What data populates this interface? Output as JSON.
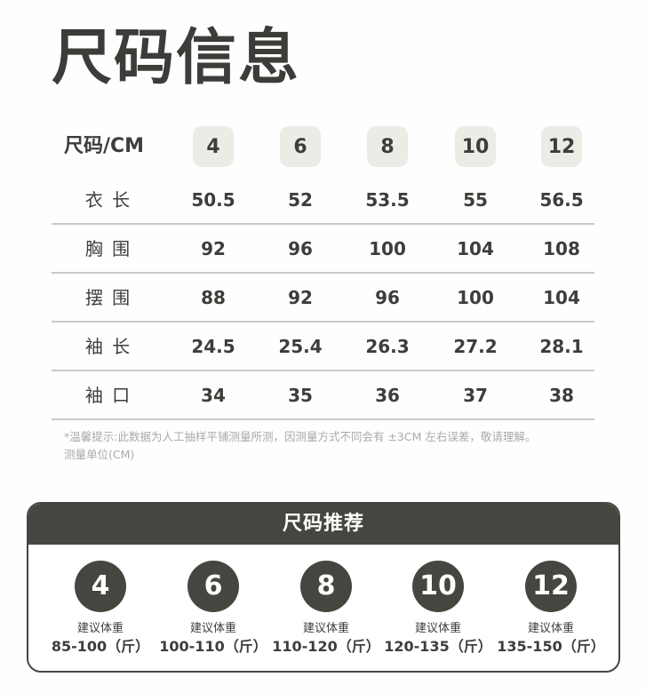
{
  "title": "尺码信息",
  "table": {
    "header_label": "尺码/CM",
    "sizes": [
      "4",
      "6",
      "8",
      "10",
      "12"
    ],
    "rows": [
      {
        "label": "衣 长",
        "values": [
          "50.5",
          "52",
          "53.5",
          "55",
          "56.5"
        ]
      },
      {
        "label": "胸 围",
        "values": [
          "92",
          "96",
          "100",
          "104",
          "108"
        ]
      },
      {
        "label": "摆 围",
        "values": [
          "88",
          "92",
          "96",
          "100",
          "104"
        ]
      },
      {
        "label": "袖 长",
        "values": [
          "24.5",
          "25.4",
          "26.3",
          "27.2",
          "28.1"
        ]
      },
      {
        "label": "袖 口",
        "values": [
          "34",
          "35",
          "36",
          "37",
          "38"
        ]
      }
    ]
  },
  "note": {
    "line1": "*温馨提示:此数据为人工抽样平铺测量所测，因测量方式不同会有 ±3CM 左右误差，敬请理解。",
    "line2": "测量单位(CM)"
  },
  "recommend": {
    "title": "尺码推荐",
    "items": [
      {
        "size": "4",
        "label": "建议体重",
        "range": "85-100（斤）"
      },
      {
        "size": "6",
        "label": "建议体重",
        "range": "100-110（斤）"
      },
      {
        "size": "8",
        "label": "建议体重",
        "range": "110-120（斤）"
      },
      {
        "size": "10",
        "label": "建议体重",
        "range": "120-135（斤）"
      },
      {
        "size": "12",
        "label": "建议体重",
        "range": "135-150（斤）"
      }
    ]
  },
  "colors": {
    "dark": "#45463f",
    "chip": "#ececE6",
    "text": "#3d3d3a",
    "note": "#a9a9a9"
  }
}
